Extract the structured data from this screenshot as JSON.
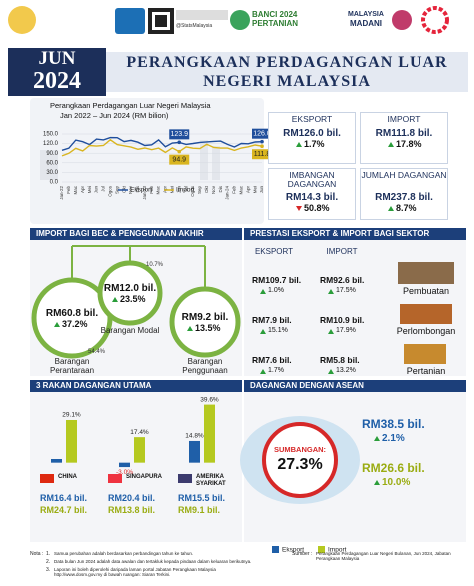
{
  "header": {
    "handle": "@StatsMalaysia",
    "census_line1": "BANCI 2024",
    "census_line2": "PERTANIAN",
    "madani_line1": "MALAYSIA",
    "madani_line2": "MADANI"
  },
  "banner": {
    "month": "JUN",
    "year": "2024",
    "title_line1": "PERANGKAAN PERDAGANGAN LUAR",
    "title_line2": "NEGERI MALAYSIA"
  },
  "chart_data": [
    {
      "type": "line",
      "title": "Perangkaan Perdagangan Luar Negeri Malaysia",
      "subtitle": "Jan 2022 – Jun 2024 (RM bilion)",
      "categories": [
        "Jan-22",
        "Feb",
        "Mac",
        "Apr",
        "Mei",
        "Jun",
        "Jul",
        "Ogos",
        "Sep",
        "Okt",
        "Nov",
        "Dis",
        "Jan-23",
        "Feb",
        "Mac",
        "Apr",
        "Mei",
        "Jun",
        "Jul",
        "Ogos",
        "Sep",
        "Okt",
        "Nov",
        "Dis",
        "Jan-24",
        "Feb",
        "Mac",
        "Apr",
        "Mei",
        "Jun"
      ],
      "series": [
        {
          "name": "Eksport",
          "color": "#1f4e9c",
          "values": [
            99.0,
            105.5,
            131.0,
            125.9,
            116.9,
            134.1,
            131.6,
            138.6,
            138.3,
            126.3,
            130.0,
            124.5,
            114.2,
            116.1,
            131.5,
            109.9,
            121.9,
            123.9,
            117.4,
            120.3,
            123.6,
            125.2,
            126.8,
            127.9,
            117.5,
            109.3,
            120.2,
            119.5,
            125.1,
            126.0
          ],
          "value_labels": [
            null,
            null,
            null,
            null,
            null,
            null,
            null,
            null,
            null,
            null,
            null,
            null,
            null,
            null,
            null,
            null,
            null,
            "123.9",
            null,
            null,
            null,
            null,
            null,
            null,
            null,
            null,
            null,
            null,
            null,
            "126.0"
          ]
        },
        {
          "name": "Import",
          "color": "#d9b520",
          "values": [
            81.5,
            89.6,
            105.3,
            97.3,
            114.2,
            112.3,
            114.1,
            132.0,
            116.8,
            113.2,
            109.1,
            102.1,
            106.3,
            100.8,
            105.9,
            92.4,
            106.5,
            94.9,
            109.7,
            105.6,
            104.5,
            117.9,
            107.8,
            105.9,
            105.8,
            98.7,
            106.1,
            110.1,
            115.6,
            111.8
          ],
          "value_labels": [
            null,
            null,
            null,
            null,
            null,
            null,
            null,
            null,
            null,
            null,
            null,
            null,
            null,
            null,
            null,
            null,
            null,
            "94.9",
            null,
            null,
            null,
            null,
            null,
            null,
            null,
            null,
            null,
            null,
            null,
            "111.8"
          ]
        }
      ],
      "ylim": [
        0,
        150
      ],
      "yticks": [
        {
          "value": 0,
          "label": "0.0"
        },
        {
          "value": 30,
          "label": "30.0"
        },
        {
          "value": 60,
          "label": "60.0"
        },
        {
          "value": 90,
          "label": "90.0"
        },
        {
          "value": 120,
          "label": "120.0"
        },
        {
          "value": 150,
          "label": "150.0"
        }
      ],
      "grid": true
    },
    {
      "type": "bar",
      "categories": [
        "CHINA",
        "SINGAPURA",
        "AMERIKA SYARIKAT"
      ],
      "series": [
        {
          "name": "Eksport",
          "color": "#1f5fa8",
          "values": [
            2.5,
            -3.0,
            14.8
          ],
          "value_labels": [
            null,
            "-3.0%",
            "14.8%"
          ]
        },
        {
          "name": "Import",
          "color": "#b5c920",
          "values": [
            29.1,
            17.4,
            39.6
          ],
          "value_labels": [
            "29.1%",
            "17.4%",
            "39.6%"
          ]
        }
      ],
      "ylim": [
        -5,
        40
      ]
    }
  ],
  "summary": [
    {
      "label": "EKSPORT",
      "value": "RM126.0 bil.",
      "change": "1.7%",
      "direction": "up"
    },
    {
      "label": "IMPORT",
      "value": "RM111.8 bil.",
      "change": "17.8%",
      "direction": "up"
    },
    {
      "label": "IMBANGAN DAGANGAN",
      "value": "RM14.3 bil.",
      "change": "50.8%",
      "direction": "down"
    },
    {
      "label": "JUMLAH DAGANGAN",
      "value": "RM237.8 bil.",
      "change": "8.7%",
      "direction": "up"
    }
  ],
  "bec": {
    "title": "IMPORT BAGI BEC & PENGGUNAAN AKHIR",
    "items": [
      {
        "name": "Barangan Perantaraan",
        "value": "RM60.8 bil.",
        "change": "37.2%",
        "share": "54.4%"
      },
      {
        "name": "Barangan Modal",
        "value": "RM12.0 bil.",
        "change": "23.5%",
        "share": "10.7%"
      },
      {
        "name": "Barangan Penggunaan",
        "value": "RM9.2 bil.",
        "change": "13.5%"
      }
    ]
  },
  "sector": {
    "title": "PRESTASI EKSPORT & IMPORT BAGI SEKTOR",
    "export_label": "EKSPORT",
    "import_label": "IMPORT",
    "rows": [
      {
        "name": "Pembuatan",
        "export_value": "RM109.7 bil.",
        "export_change": "1.0%",
        "import_value": "RM92.6 bil.",
        "import_change": "17.5%"
      },
      {
        "name": "Perlombongan",
        "export_value": "RM7.9 bil.",
        "export_change": "15.1%",
        "import_value": "RM10.9 bil.",
        "import_change": "17.9%"
      },
      {
        "name": "Pertanian",
        "export_value": "RM7.6 bil.",
        "export_change": "1.7%",
        "import_value": "RM5.8 bil.",
        "import_change": "13.2%"
      }
    ]
  },
  "partners": {
    "title": "3 RAKAN DAGANGAN UTAMA",
    "rows": [
      {
        "export": "RM16.4 bil.",
        "import": "RM24.7 bil."
      },
      {
        "export": "RM20.4 bil.",
        "import": "RM13.8 bil."
      },
      {
        "export": "RM15.5 bil.",
        "import": "RM9.1 bil."
      }
    ]
  },
  "asean": {
    "title": "DAGANGAN DENGAN ASEAN",
    "contribution_label": "SUMBANGAN:",
    "contribution": "27.3%",
    "export_value": "RM38.5 bil.",
    "export_change": "2.1%",
    "import_value": "RM26.6 bil.",
    "import_change": "10.0%"
  },
  "notes": {
    "label": "Nota :",
    "items": [
      {
        "number": "1.",
        "text": "Samua perubahan adalah berdasarkan perbandingan tahun ke tahun."
      },
      {
        "number": "2.",
        "text": "Data bulan Jun 2024 adalah data awalan dan tertakluk kepada pindaan dalam keluaran berikutnya."
      },
      {
        "number": "3.",
        "text": "Laporan ini boleh diperolehi daripada laman portal Jabatan Perangkaan Malaysia http://www.dosm.gov.my di bawah ruangan: Siaran Terkini."
      }
    ]
  },
  "source": {
    "label": "Sumber :",
    "text": "Perangkaan Perdagangan Luar Negeri Bulanan, Jun 2024, Jabatan Perangkaan Malaysia"
  }
}
